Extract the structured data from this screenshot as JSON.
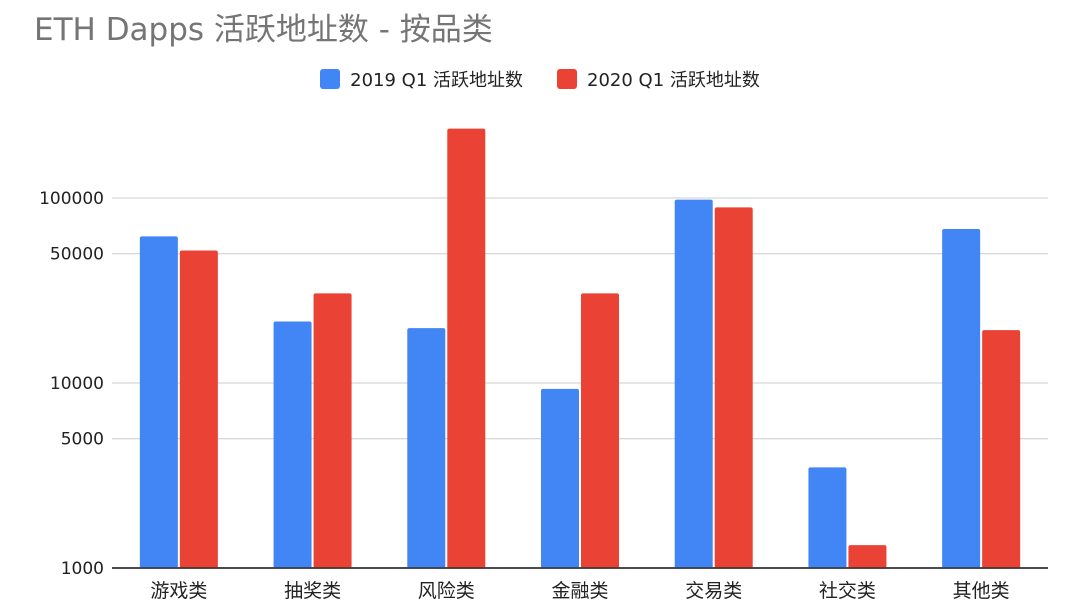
{
  "chart_data": {
    "type": "bar",
    "title": "ETH Dapps 活跃地址数 - 按品类",
    "categories": [
      "游戏类",
      "抽奖类",
      "风险类",
      "金融类",
      "交易类",
      "社交类",
      "其他类"
    ],
    "series": [
      {
        "name": "2019 Q1 活跃地址数",
        "color": "#4285f4",
        "values": [
          62000,
          21500,
          19800,
          9300,
          98000,
          3500,
          68000
        ]
      },
      {
        "name": "2020 Q1 活跃地址数",
        "color": "#ea4335",
        "values": [
          52000,
          30500,
          237000,
          30500,
          89000,
          1330,
          19300
        ]
      }
    ],
    "y_scale": "log",
    "ylim": [
      1000,
      240000
    ],
    "y_ticks": [
      1000,
      5000,
      10000,
      50000,
      100000
    ],
    "grid": true,
    "legend_position": "top-center"
  }
}
